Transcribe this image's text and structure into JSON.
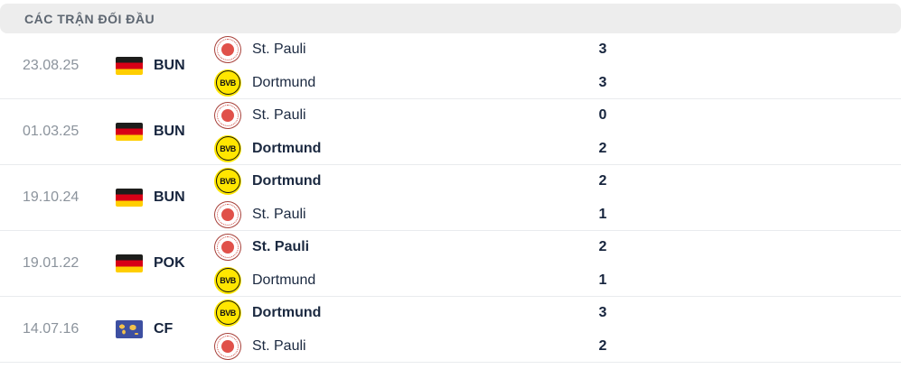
{
  "header": {
    "title": "CÁC TRẬN ĐỐI ĐẦU"
  },
  "icons": {
    "bvb_monogram": "BVB",
    "st_pauli_logo": "st-pauli-logo",
    "dortmund_logo": "dortmund-logo",
    "germany_flag": "flag-germany",
    "world_flag": "flag-world"
  },
  "colors": {
    "header_bg": "#ededed",
    "header_text": "#5d6671",
    "date_text": "#8b939c",
    "dark_navy": "#16243d",
    "divider": "#e9ebee",
    "bvb_yellow": "#ffe600",
    "st_pauli_red": "#e0514a",
    "german_flag_red": "#d80016",
    "german_flag_gold": "#ffce00",
    "world_flag_blue": "#3d4fa1"
  },
  "matches": [
    {
      "date": "23.08.25",
      "competition": "BUN",
      "flag": "flag-germany",
      "home": {
        "team": "St. Pauli",
        "logo": "st-pauli-logo",
        "score": "3",
        "result": "draw"
      },
      "away": {
        "team": "Dortmund",
        "logo": "dortmund-logo",
        "score": "3",
        "result": "draw"
      }
    },
    {
      "date": "01.03.25",
      "competition": "BUN",
      "flag": "flag-germany",
      "home": {
        "team": "St. Pauli",
        "logo": "st-pauli-logo",
        "score": "0",
        "result": "loser"
      },
      "away": {
        "team": "Dortmund",
        "logo": "dortmund-logo",
        "score": "2",
        "result": "winner"
      }
    },
    {
      "date": "19.10.24",
      "competition": "BUN",
      "flag": "flag-germany",
      "home": {
        "team": "Dortmund",
        "logo": "dortmund-logo",
        "score": "2",
        "result": "winner"
      },
      "away": {
        "team": "St. Pauli",
        "logo": "st-pauli-logo",
        "score": "1",
        "result": "loser"
      }
    },
    {
      "date": "19.01.22",
      "competition": "POK",
      "flag": "flag-germany",
      "home": {
        "team": "St. Pauli",
        "logo": "st-pauli-logo",
        "score": "2",
        "result": "winner"
      },
      "away": {
        "team": "Dortmund",
        "logo": "dortmund-logo",
        "score": "1",
        "result": "loser"
      }
    },
    {
      "date": "14.07.16",
      "competition": "CF",
      "flag": "flag-world",
      "home": {
        "team": "Dortmund",
        "logo": "dortmund-logo",
        "score": "3",
        "result": "winner"
      },
      "away": {
        "team": "St. Pauli",
        "logo": "st-pauli-logo",
        "score": "2",
        "result": "loser"
      }
    }
  ]
}
